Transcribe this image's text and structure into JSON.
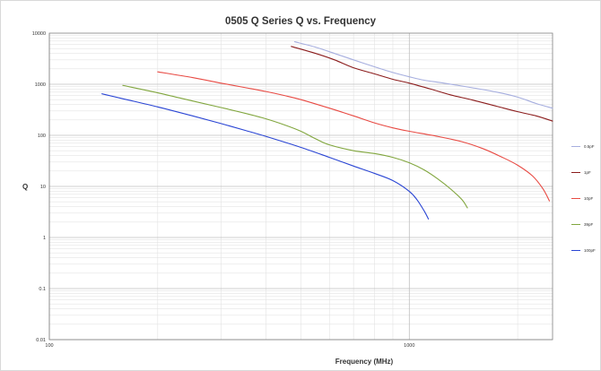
{
  "chart_data": {
    "type": "line",
    "title": "0505 Q Series Q vs. Frequency",
    "xlabel": "Frequency (MHz)",
    "ylabel": "Q",
    "x_scale": "log",
    "y_scale": "log",
    "xlim": [
      100,
      2500
    ],
    "ylim": [
      0.01,
      10000
    ],
    "x_ticks": [
      "100",
      "1000"
    ],
    "y_ticks": [
      "0.01",
      "0.1",
      "1",
      "10",
      "100",
      "1000",
      "10000"
    ],
    "grid": true,
    "legend_position": "right",
    "series": [
      {
        "name": "0.5pF",
        "color": "#a6aedf",
        "x": [
          480,
          550,
          620,
          700,
          800,
          900,
          1000,
          1100,
          1250,
          1500,
          1750,
          2000,
          2250,
          2500
        ],
        "y": [
          6800,
          5300,
          4000,
          3000,
          2200,
          1700,
          1400,
          1200,
          1050,
          850,
          700,
          560,
          420,
          340
        ]
      },
      {
        "name": "1pF",
        "color": "#8b1c1c",
        "x": [
          470,
          550,
          620,
          700,
          800,
          900,
          1000,
          1150,
          1300,
          1500,
          1750,
          2000,
          2250,
          2500
        ],
        "y": [
          5500,
          4000,
          3000,
          2100,
          1600,
          1250,
          1050,
          800,
          620,
          490,
          370,
          290,
          240,
          190
        ]
      },
      {
        "name": "10pF",
        "color": "#e84a43",
        "x": [
          200,
          250,
          300,
          350,
          400,
          450,
          500,
          600,
          700,
          800,
          900,
          1000,
          1200,
          1400,
          1600,
          1800,
          2000,
          2200,
          2350,
          2450
        ],
        "y": [
          1750,
          1350,
          1050,
          860,
          720,
          600,
          500,
          340,
          240,
          175,
          140,
          120,
          95,
          75,
          55,
          38,
          26,
          16,
          9,
          5.2
        ]
      },
      {
        "name": "39pF",
        "color": "#81a63e",
        "x": [
          160,
          200,
          250,
          300,
          350,
          400,
          450,
          500,
          550,
          600,
          700,
          800,
          900,
          1000,
          1100,
          1200,
          1300,
          1400,
          1450
        ],
        "y": [
          950,
          680,
          470,
          350,
          270,
          210,
          160,
          120,
          85,
          65,
          50,
          44,
          37,
          29,
          21,
          14,
          9,
          5.5,
          3.8
        ]
      },
      {
        "name": "100pF",
        "color": "#2a45d4",
        "x": [
          140,
          160,
          200,
          250,
          300,
          350,
          400,
          500,
          600,
          700,
          800,
          900,
          1000,
          1050,
          1100,
          1130
        ],
        "y": [
          650,
          520,
          360,
          240,
          170,
          125,
          95,
          58,
          37,
          25,
          18,
          13,
          8,
          5.5,
          3.3,
          2.3
        ]
      }
    ]
  }
}
